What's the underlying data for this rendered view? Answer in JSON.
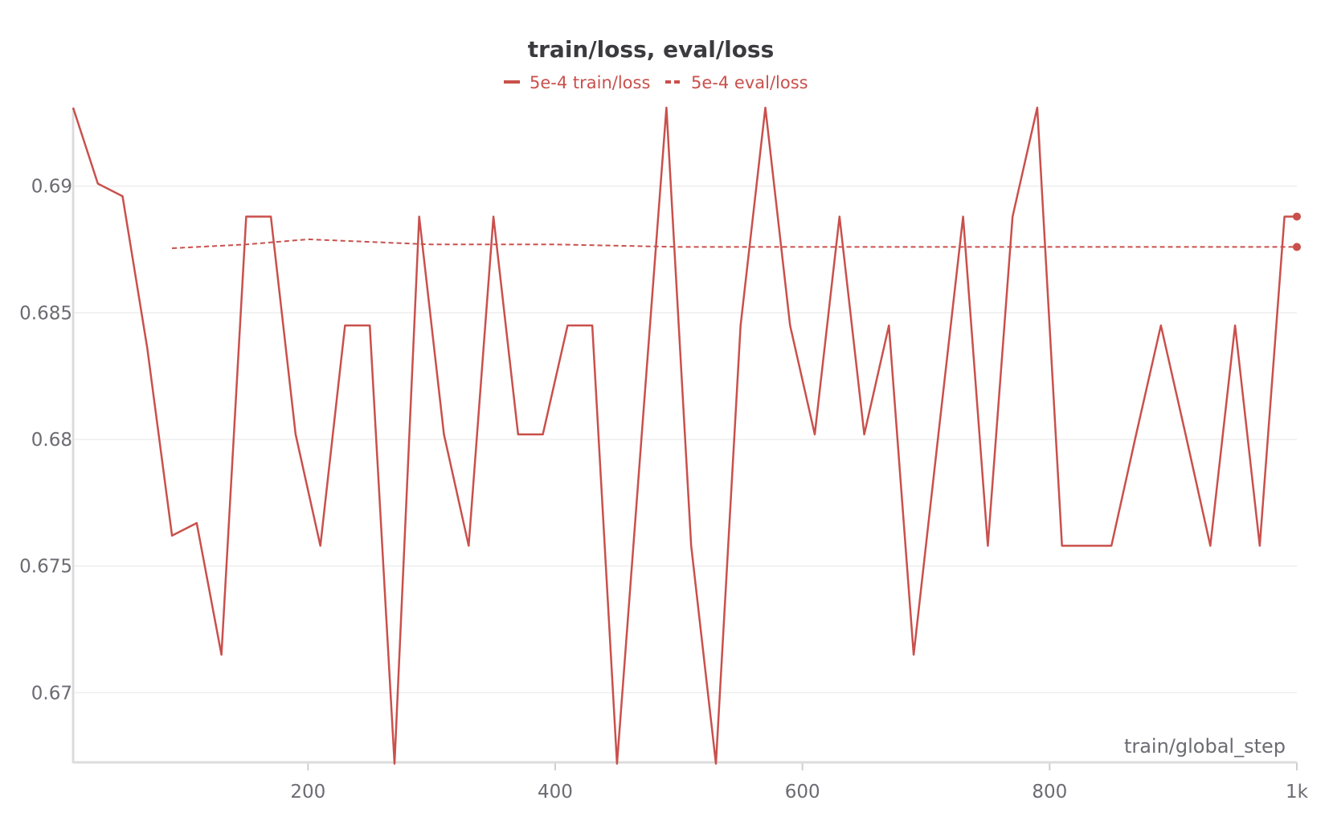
{
  "chart_data": {
    "type": "line",
    "title": "train/loss, eval/loss",
    "xlabel": "train/global_step",
    "ylabel": "",
    "xlim": [
      10,
      1000
    ],
    "ylim": [
      0.66725,
      0.6931
    ],
    "x_ticks": [
      200,
      400,
      600,
      800,
      1000
    ],
    "x_tick_labels": [
      "200",
      "400",
      "600",
      "800",
      "1k"
    ],
    "y_ticks": [
      0.67,
      0.675,
      0.68,
      0.685,
      0.69
    ],
    "y_tick_labels": [
      "0.67",
      "0.675",
      "0.68",
      "0.685",
      "0.69"
    ],
    "grid": true,
    "legend_position": "top-center",
    "colors": {
      "series": "#c9504c"
    },
    "series": [
      {
        "name": "5e-4 train/loss",
        "style": "solid",
        "x": [
          10,
          30,
          50,
          70,
          90,
          110,
          130,
          150,
          170,
          190,
          210,
          230,
          250,
          270,
          290,
          310,
          330,
          350,
          370,
          390,
          410,
          430,
          450,
          470,
          490,
          510,
          530,
          550,
          570,
          590,
          610,
          630,
          650,
          670,
          690,
          710,
          730,
          750,
          770,
          790,
          810,
          830,
          850,
          870,
          890,
          910,
          930,
          950,
          970,
          990,
          1000
        ],
        "y": [
          0.6931,
          0.6901,
          0.6896,
          0.6836,
          0.6762,
          0.6767,
          0.6715,
          0.6888,
          0.6888,
          0.6802,
          0.6758,
          0.6845,
          0.6845,
          0.6672,
          0.6888,
          0.6802,
          0.6758,
          0.6888,
          0.6802,
          0.6802,
          0.6845,
          0.6845,
          0.6672,
          0.6802,
          0.6931,
          0.6758,
          0.6672,
          0.6845,
          0.6931,
          0.6845,
          0.6802,
          0.6888,
          0.6802,
          0.6845,
          0.6715,
          0.6802,
          0.6888,
          0.6758,
          0.6888,
          0.6931,
          0.6758,
          0.6758,
          0.6758,
          0.6802,
          0.6845,
          0.6802,
          0.6758,
          0.6845,
          0.6758,
          0.6888,
          0.6888
        ]
      },
      {
        "name": "5e-4 eval/loss",
        "style": "dashed",
        "x": [
          90,
          150,
          200,
          250,
          300,
          400,
          500,
          600,
          700,
          800,
          900,
          1000
        ],
        "y": [
          0.68755,
          0.6877,
          0.6879,
          0.6878,
          0.6877,
          0.6877,
          0.6876,
          0.6876,
          0.6876,
          0.6876,
          0.6876,
          0.6876
        ]
      }
    ]
  }
}
